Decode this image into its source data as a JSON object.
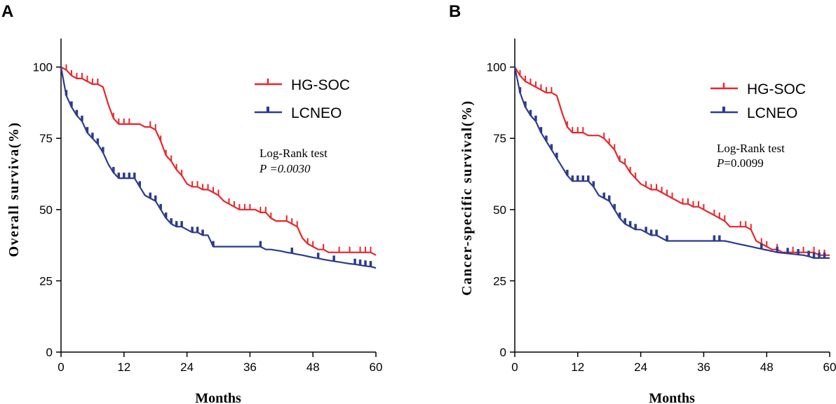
{
  "chart_data": [
    {
      "type": "line",
      "panel_label": "A",
      "title": "",
      "xlabel": "Months",
      "ylabel": "Overall surviva(%)",
      "xlim": [
        0,
        60
      ],
      "ylim": [
        0,
        110
      ],
      "xticks": [
        "0",
        "12",
        "24",
        "36",
        "48",
        "60"
      ],
      "yticks": [
        "0",
        "25",
        "50",
        "75",
        "100"
      ],
      "annotation": {
        "line1": "Log-Rank test",
        "p_label": "P",
        "p_value": " =0.0030"
      },
      "legend_position": "top-right",
      "series": [
        {
          "name": "HG-SOC",
          "color": "#e8262a",
          "x": [
            0,
            1,
            2,
            3,
            4,
            5,
            6,
            7,
            8,
            9,
            10,
            11,
            12,
            13,
            14,
            15,
            16,
            17,
            18,
            19,
            20,
            21,
            22,
            23,
            24,
            25,
            26,
            27,
            28,
            29,
            30,
            31,
            32,
            33,
            34,
            35,
            36,
            37,
            38,
            39,
            40,
            41,
            42,
            43,
            44,
            45,
            46,
            47,
            48,
            49,
            50,
            51,
            52,
            53,
            54,
            55,
            56,
            57,
            58,
            59,
            60
          ],
          "y": [
            100,
            99,
            97,
            96,
            96,
            95,
            94,
            94,
            93,
            87,
            82,
            80,
            80,
            80,
            80,
            80,
            79,
            79,
            78,
            74,
            69,
            67,
            64,
            62,
            59,
            58,
            58,
            57,
            57,
            56,
            55,
            53,
            52,
            51,
            50,
            50,
            50,
            50,
            49,
            49,
            47,
            46,
            46,
            46,
            45,
            44,
            40,
            38,
            37,
            36,
            36,
            35,
            35,
            35,
            35,
            35,
            35,
            35,
            35,
            35,
            34
          ],
          "censor_x": [
            1,
            2,
            3,
            4,
            5,
            6,
            7,
            10,
            11,
            12,
            13,
            17,
            18,
            19,
            20,
            21,
            22,
            23,
            25,
            26,
            27,
            28,
            29,
            30,
            32,
            33,
            34,
            35,
            36,
            38,
            39,
            40,
            43,
            44,
            45,
            47,
            48,
            50,
            53,
            55,
            57,
            58,
            59
          ]
        },
        {
          "name": "LCNEO",
          "color": "#2d3b8f",
          "x": [
            0,
            1,
            2,
            3,
            4,
            5,
            6,
            7,
            8,
            9,
            10,
            11,
            12,
            13,
            14,
            15,
            16,
            17,
            18,
            19,
            20,
            21,
            22,
            23,
            24,
            25,
            26,
            27,
            28,
            29,
            30,
            31,
            32,
            33,
            34,
            35,
            36,
            37,
            38,
            39,
            40,
            41,
            42,
            43,
            44,
            45,
            46,
            47,
            48,
            49,
            50,
            51,
            52,
            53,
            54,
            55,
            56,
            57,
            58,
            59,
            60
          ],
          "y": [
            100,
            90,
            86,
            83,
            81,
            77,
            75,
            73,
            70,
            66,
            63,
            61,
            61,
            61,
            61,
            58,
            55,
            54,
            53,
            50,
            47,
            45,
            44,
            44,
            43,
            42,
            42,
            41,
            41,
            37,
            37,
            37,
            37,
            37,
            37,
            37,
            37,
            37,
            37,
            36,
            36,
            35.7,
            35.4,
            35,
            34.7,
            34.3,
            34,
            33.6,
            33.2,
            32.9,
            32.5,
            32.2,
            31.9,
            31.6,
            31.3,
            31,
            30.8,
            30.5,
            30.2,
            30,
            29.5
          ],
          "censor_x": [
            1,
            2,
            3,
            4,
            5,
            6,
            7,
            8,
            10,
            11,
            12,
            13,
            14,
            15,
            17,
            18,
            19,
            20,
            21,
            22,
            23,
            25,
            26,
            27,
            29,
            38,
            44,
            49,
            52,
            56,
            57,
            58,
            59
          ]
        }
      ]
    },
    {
      "type": "line",
      "panel_label": "B",
      "title": "",
      "xlabel": "Months",
      "ylabel": "Cancer-specific survival(%)",
      "xlim": [
        0,
        60
      ],
      "ylim": [
        0,
        110
      ],
      "xticks": [
        "0",
        "12",
        "24",
        "36",
        "48",
        "60"
      ],
      "yticks": [
        "0",
        "25",
        "50",
        "75",
        "100"
      ],
      "annotation": {
        "line1": "Log-Rank test",
        "p_label": "P",
        "p_value": "=0.0099"
      },
      "legend_position": "top-right",
      "series": [
        {
          "name": "HG-SOC",
          "color": "#e8262a",
          "x": [
            0,
            1,
            2,
            3,
            4,
            5,
            6,
            7,
            8,
            9,
            10,
            11,
            12,
            13,
            14,
            15,
            16,
            17,
            18,
            19,
            20,
            21,
            22,
            23,
            24,
            25,
            26,
            27,
            28,
            29,
            30,
            31,
            32,
            33,
            34,
            35,
            36,
            37,
            38,
            39,
            40,
            41,
            42,
            43,
            44,
            45,
            46,
            47,
            48,
            49,
            50,
            51,
            52,
            53,
            54,
            55,
            56,
            57,
            58,
            59,
            60
          ],
          "y": [
            100,
            97,
            95,
            94,
            93,
            92,
            91,
            91,
            90,
            84,
            79,
            77,
            77,
            77,
            76,
            76,
            76,
            75,
            73,
            71,
            67,
            66,
            63,
            61,
            59,
            58,
            57,
            57,
            56,
            55,
            54,
            53,
            52,
            52,
            51,
            51,
            50,
            49,
            48,
            47,
            46,
            44,
            44,
            44,
            44,
            43,
            39,
            38,
            37,
            36,
            36,
            35,
            35,
            35,
            35,
            35,
            35,
            35,
            34,
            34,
            34
          ],
          "censor_x": [
            1,
            2,
            3,
            4,
            5,
            6,
            7,
            10,
            11,
            12,
            13,
            17,
            18,
            19,
            20,
            21,
            22,
            23,
            25,
            26,
            27,
            28,
            29,
            30,
            32,
            33,
            34,
            35,
            36,
            38,
            39,
            40,
            43,
            44,
            45,
            47,
            48,
            50,
            53,
            55,
            57,
            58,
            59
          ]
        },
        {
          "name": "LCNEO",
          "color": "#2d3b8f",
          "x": [
            0,
            1,
            2,
            3,
            4,
            5,
            6,
            7,
            8,
            9,
            10,
            11,
            12,
            13,
            14,
            15,
            16,
            17,
            18,
            19,
            20,
            21,
            22,
            23,
            24,
            25,
            26,
            27,
            28,
            29,
            30,
            31,
            32,
            33,
            34,
            35,
            36,
            37,
            38,
            39,
            40,
            41,
            42,
            43,
            44,
            45,
            46,
            47,
            48,
            49,
            50,
            51,
            52,
            53,
            54,
            55,
            56,
            57,
            58,
            59,
            60
          ],
          "y": [
            100,
            91,
            86,
            83,
            81,
            77,
            74,
            71,
            68,
            65,
            62,
            60,
            60,
            60,
            60,
            58,
            55,
            54,
            53,
            50,
            47,
            45,
            44,
            43,
            43,
            42,
            41,
            41,
            40,
            39,
            39,
            39,
            39,
            39,
            39,
            39,
            39,
            39,
            39,
            39,
            39,
            38.6,
            38.2,
            37.8,
            37.4,
            37,
            36.6,
            36.2,
            35.8,
            35.4,
            35,
            34.8,
            34.6,
            34.4,
            34.2,
            34,
            33.6,
            33,
            33,
            33,
            33
          ],
          "censor_x": [
            1,
            2,
            3,
            4,
            5,
            6,
            7,
            8,
            10,
            11,
            12,
            13,
            14,
            15,
            17,
            18,
            19,
            20,
            21,
            22,
            23,
            25,
            26,
            27,
            29,
            38,
            39,
            47,
            50,
            52,
            54,
            56,
            57,
            58,
            59
          ]
        }
      ]
    }
  ]
}
